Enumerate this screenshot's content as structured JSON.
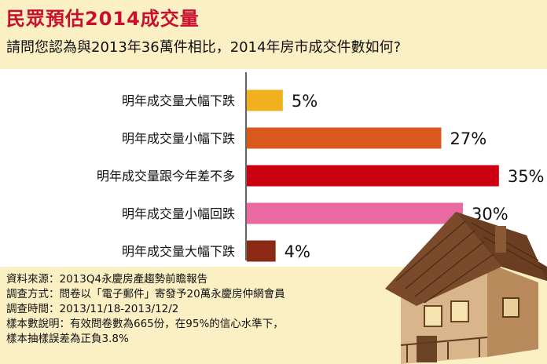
{
  "header": {
    "title": "民眾預估2014成交量",
    "question": "請問您認為與2013年36萬件相比，2014年房市成交件數如何?"
  },
  "chart_data": {
    "type": "bar",
    "orientation": "horizontal",
    "categories": [
      "明年成交量大幅下跌",
      "明年成交量小幅下跌",
      "明年成交量跟今年差不多",
      "明年成交量小幅回跌",
      "明年成交量大幅下跌"
    ],
    "values": [
      5,
      27,
      35,
      30,
      4
    ],
    "value_labels": [
      "5%",
      "27%",
      "35%",
      "30%",
      "4%"
    ],
    "colors": [
      "#f2b01e",
      "#d95a1f",
      "#cc0010",
      "#e86aa0",
      "#8b2a14"
    ],
    "xlim": [
      0,
      36
    ],
    "grid": false,
    "legend": "none"
  },
  "notes": [
    "資料來源：2013Q4永慶房產趨勢前瞻報告",
    "調查方式：問卷以「電子郵件」寄發予20萬永慶房仲網會員",
    "調查時間：2013/11/18-2013/12/2",
    "樣本數說明：有效問卷數為665份，在95%的信心水準下，",
    "樣本抽樣誤差為正負3.8%"
  ]
}
